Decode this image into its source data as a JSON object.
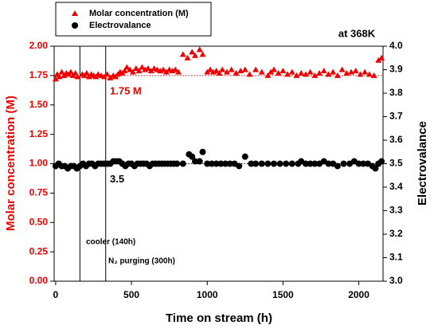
{
  "chart_data": {
    "type": "scatter",
    "title": "at 368K",
    "x_label": "Time on stream (h)",
    "y_label": "Molar concentration (M)",
    "y2_label": "Electrovalance",
    "xlim": [
      -10,
      2160
    ],
    "xticks": [
      0,
      500,
      1000,
      1500,
      2000
    ],
    "ylim": [
      0,
      2
    ],
    "yticks": [
      {
        "value": 0,
        "label": "0.00"
      },
      {
        "value": 0.25,
        "label": "0.25"
      },
      {
        "value": 0.5,
        "label": "0.50"
      },
      {
        "value": 0.75,
        "label": "0.75"
      },
      {
        "value": 1,
        "label": "1.00"
      },
      {
        "value": 1.25,
        "label": "1.25"
      },
      {
        "value": 1.5,
        "label": "1.50"
      },
      {
        "value": 1.75,
        "label": "1.75"
      },
      {
        "value": 2,
        "label": "2.00"
      }
    ],
    "y2lim": [
      3,
      4
    ],
    "y2ticks": [
      {
        "value": 3,
        "label": "3.0"
      },
      3.1,
      3.2,
      3.3,
      3.4,
      3.5,
      3.6,
      3.7,
      3.8,
      3.9,
      {
        "value": 4,
        "label": "4.0"
      }
    ],
    "series": [
      {
        "name": "Molar concentration (M)",
        "color": "#ee0000",
        "marker": "triangle",
        "x": [
          0,
          10,
          25,
          40,
          55,
          70,
          85,
          100,
          115,
          130,
          145,
          175,
          190,
          205,
          220,
          235,
          250,
          265,
          280,
          300,
          320,
          340,
          360,
          380,
          395,
          410,
          425,
          440,
          455,
          470,
          490,
          510,
          530,
          550,
          570,
          590,
          610,
          630,
          650,
          670,
          690,
          710,
          730,
          750,
          770,
          790,
          810,
          840,
          870,
          900,
          920,
          950,
          970,
          1000,
          1020,
          1040,
          1060,
          1080,
          1100,
          1130,
          1160,
          1190,
          1220,
          1250,
          1280,
          1320,
          1360,
          1400,
          1420,
          1440,
          1470,
          1500,
          1530,
          1560,
          1590,
          1620,
          1650,
          1680,
          1710,
          1740,
          1770,
          1800,
          1830,
          1860,
          1890,
          1920,
          1950,
          1980,
          2010,
          2040,
          2070,
          2100,
          2130,
          2150
        ],
        "values": [
          1.72,
          1.76,
          1.74,
          1.78,
          1.75,
          1.77,
          1.76,
          1.78,
          1.75,
          1.77,
          1.74,
          1.76,
          1.75,
          1.77,
          1.74,
          1.76,
          1.75,
          1.74,
          1.76,
          1.75,
          1.74,
          1.76,
          1.73,
          1.75,
          1.74,
          1.76,
          1.78,
          1.77,
          1.79,
          1.82,
          1.8,
          1.78,
          1.81,
          1.79,
          1.82,
          1.8,
          1.81,
          1.79,
          1.81,
          1.8,
          1.79,
          1.8,
          1.78,
          1.8,
          1.79,
          1.8,
          1.78,
          1.93,
          1.9,
          1.95,
          1.92,
          1.97,
          1.93,
          1.78,
          1.8,
          1.78,
          1.79,
          1.77,
          1.8,
          1.78,
          1.8,
          1.77,
          1.79,
          1.8,
          1.76,
          1.8,
          1.78,
          1.75,
          1.78,
          1.8,
          1.77,
          1.79,
          1.76,
          1.78,
          1.75,
          1.77,
          1.76,
          1.78,
          1.75,
          1.77,
          1.79,
          1.76,
          1.78,
          1.75,
          1.8,
          1.77,
          1.78,
          1.79,
          1.76,
          1.78,
          1.76,
          1.75,
          1.88,
          1.9
        ]
      },
      {
        "name": "Electrovalance",
        "color": "#000000",
        "marker": "circle",
        "axis": "y2",
        "x": [
          0,
          20,
          40,
          60,
          80,
          100,
          120,
          140,
          160,
          180,
          200,
          220,
          240,
          260,
          280,
          300,
          320,
          340,
          360,
          380,
          400,
          420,
          440,
          460,
          480,
          500,
          520,
          540,
          560,
          580,
          600,
          620,
          640,
          660,
          680,
          700,
          720,
          740,
          760,
          780,
          800,
          840,
          880,
          900,
          920,
          950,
          970,
          1000,
          1030,
          1060,
          1090,
          1120,
          1150,
          1180,
          1210,
          1250,
          1290,
          1320,
          1360,
          1400,
          1440,
          1480,
          1520,
          1560,
          1600,
          1620,
          1650,
          1680,
          1710,
          1740,
          1770,
          1800,
          1830,
          1860,
          1900,
          1940,
          1970,
          2000,
          2030,
          2060,
          2090,
          2110,
          2130,
          2150
        ],
        "values": [
          3.49,
          3.5,
          3.49,
          3.49,
          3.48,
          3.49,
          3.49,
          3.48,
          3.49,
          3.5,
          3.49,
          3.5,
          3.5,
          3.49,
          3.5,
          3.5,
          3.5,
          3.5,
          3.5,
          3.51,
          3.51,
          3.51,
          3.5,
          3.49,
          3.5,
          3.5,
          3.49,
          3.5,
          3.5,
          3.5,
          3.5,
          3.49,
          3.5,
          3.5,
          3.5,
          3.5,
          3.5,
          3.5,
          3.5,
          3.5,
          3.5,
          3.5,
          3.54,
          3.53,
          3.51,
          3.51,
          3.55,
          3.5,
          3.5,
          3.5,
          3.5,
          3.5,
          3.5,
          3.5,
          3.49,
          3.53,
          3.5,
          3.5,
          3.5,
          3.5,
          3.5,
          3.5,
          3.5,
          3.5,
          3.5,
          3.51,
          3.5,
          3.5,
          3.5,
          3.5,
          3.51,
          3.5,
          3.5,
          3.49,
          3.5,
          3.5,
          3.51,
          3.5,
          3.5,
          3.5,
          3.49,
          3.48,
          3.5,
          3.51
        ]
      }
    ],
    "reference_lines": [
      {
        "value": 1.75,
        "label": "1.75 M",
        "color": "#ee0000"
      },
      {
        "value": 3.5,
        "label": "3.5",
        "color": "#000000",
        "axis": "y2"
      }
    ],
    "events": [
      {
        "x": 160,
        "label": "cooler (140h)"
      },
      {
        "x": 330,
        "label": "N₂ purging (300h)"
      }
    ],
    "legend": "top-left"
  }
}
